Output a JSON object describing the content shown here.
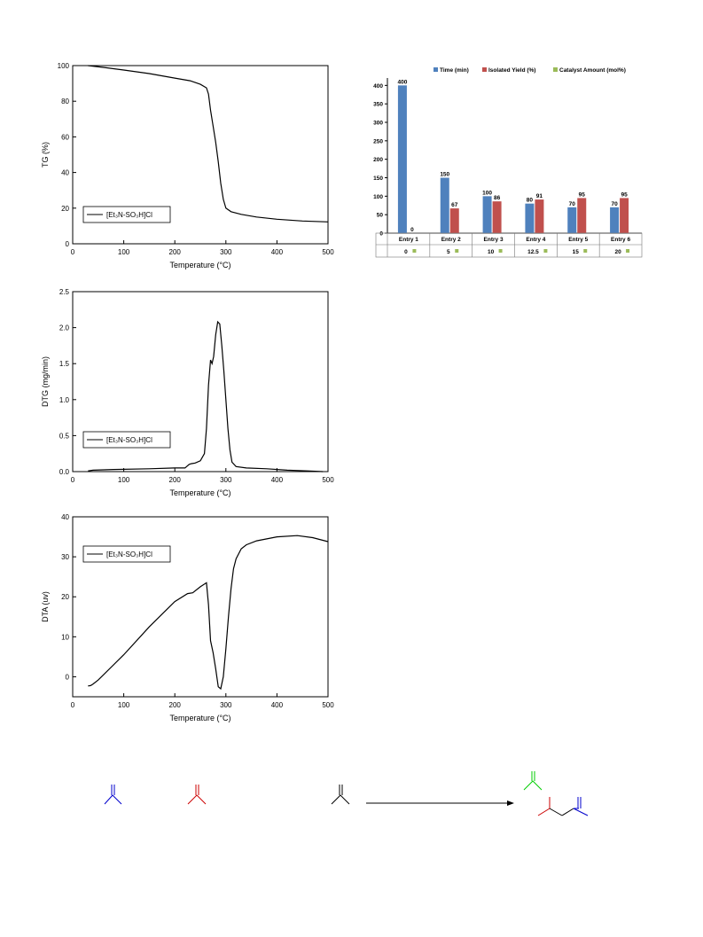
{
  "chart_data": [
    {
      "type": "line",
      "ylabel": "TG (%)",
      "xlabel": "Temperature (°C)",
      "xlim": [
        0,
        500
      ],
      "ylim": [
        0,
        100
      ],
      "xticks": [
        0,
        100,
        200,
        300,
        400,
        500
      ],
      "yticks": [
        0,
        20,
        40,
        60,
        80,
        100
      ],
      "series": [
        {
          "name": "[Et3N-SO3H]Cl",
          "x": [
            30,
            60,
            100,
            150,
            200,
            230,
            250,
            262,
            266,
            270,
            275,
            280,
            285,
            290,
            295,
            300,
            310,
            330,
            360,
            400,
            450,
            500
          ],
          "y": [
            100,
            99,
            97.5,
            95.5,
            93,
            91.5,
            89.5,
            87.5,
            84,
            75,
            66,
            57,
            46,
            34,
            25,
            20,
            18,
            16.5,
            15,
            13.8,
            12.8,
            12.3
          ]
        }
      ]
    },
    {
      "type": "line",
      "ylabel": "DTG (mg/min)",
      "xlabel": "Temperature (°C)",
      "xlim": [
        0,
        500
      ],
      "ylim": [
        0,
        2.5
      ],
      "xticks": [
        0,
        100,
        200,
        300,
        400,
        500
      ],
      "yticks": [
        0.0,
        0.5,
        1.0,
        1.5,
        2.0,
        2.5
      ],
      "series": [
        {
          "name": "[Et3N-SO3H]Cl",
          "x": [
            30,
            40,
            80,
            150,
            200,
            220,
            228,
            232,
            240,
            250,
            258,
            262,
            266,
            270,
            273,
            276,
            280,
            284,
            288,
            292,
            296,
            300,
            304,
            308,
            312,
            320,
            340,
            380,
            420,
            460,
            490
          ],
          "y": [
            0.01,
            0.02,
            0.03,
            0.04,
            0.05,
            0.05,
            0.1,
            0.11,
            0.12,
            0.15,
            0.25,
            0.6,
            1.2,
            1.55,
            1.5,
            1.6,
            1.9,
            2.08,
            2.05,
            1.75,
            1.4,
            1.0,
            0.6,
            0.3,
            0.13,
            0.07,
            0.05,
            0.04,
            0.02,
            0.01,
            0.0
          ]
        }
      ]
    },
    {
      "type": "line",
      "ylabel": "DTA (uv)",
      "xlabel": "Temperature (°C)",
      "xlim": [
        0,
        500
      ],
      "ylim": [
        -5,
        40
      ],
      "xticks": [
        0,
        100,
        200,
        300,
        400,
        500
      ],
      "yticks": [
        0,
        10,
        20,
        30,
        40
      ],
      "series": [
        {
          "name": "[Et3N-SO3H]Cl",
          "x": [
            30,
            35,
            40,
            50,
            100,
            150,
            200,
            225,
            235,
            250,
            262,
            266,
            270,
            275,
            280,
            285,
            290,
            295,
            300,
            305,
            310,
            315,
            320,
            330,
            340,
            360,
            400,
            440,
            470,
            500
          ],
          "y": [
            -2.3,
            -2.2,
            -1.8,
            -0.8,
            5.5,
            12.5,
            18.8,
            20.8,
            21.0,
            22.5,
            23.5,
            18,
            9,
            6,
            2,
            -2.5,
            -3.0,
            0,
            7,
            15,
            22,
            27,
            29.5,
            32,
            33,
            34,
            35,
            35.3,
            34.8,
            33.8
          ]
        }
      ]
    },
    {
      "type": "bar",
      "categories": [
        "Entry 1",
        "Entry 2",
        "Entry 3",
        "Entry 4",
        "Entry 5",
        "Entry 6"
      ],
      "catalyst_row": [
        "0",
        "5",
        "10",
        "12.5",
        "15",
        "20"
      ],
      "ylim": [
        0,
        420
      ],
      "yticks": [
        0,
        50,
        100,
        150,
        200,
        250,
        300,
        350,
        400
      ],
      "series": [
        {
          "name": "Time (min)",
          "values": [
            400,
            150,
            100,
            80,
            70,
            70
          ],
          "labels": [
            "400",
            "150",
            "100",
            "80",
            "70",
            "70"
          ],
          "color": "#4f81bd"
        },
        {
          "name": "Isolated Yield (%)",
          "values": [
            0,
            67,
            86,
            91,
            95,
            95
          ],
          "labels": [
            "0",
            "67",
            "86",
            "91",
            "95",
            "95"
          ],
          "color": "#c0504d"
        },
        {
          "name": "Catalyst Amount (mol%)",
          "values": [
            0,
            5,
            10,
            12.5,
            15,
            20
          ],
          "color": "#9bbb59"
        }
      ],
      "legend": "top"
    }
  ],
  "legend_label": "[Et₃N-SO₃H]Cl",
  "scheme_colors": {
    "blue": "#0000cc",
    "red": "#cc0000",
    "black": "#000000",
    "green": "#00cc00"
  }
}
